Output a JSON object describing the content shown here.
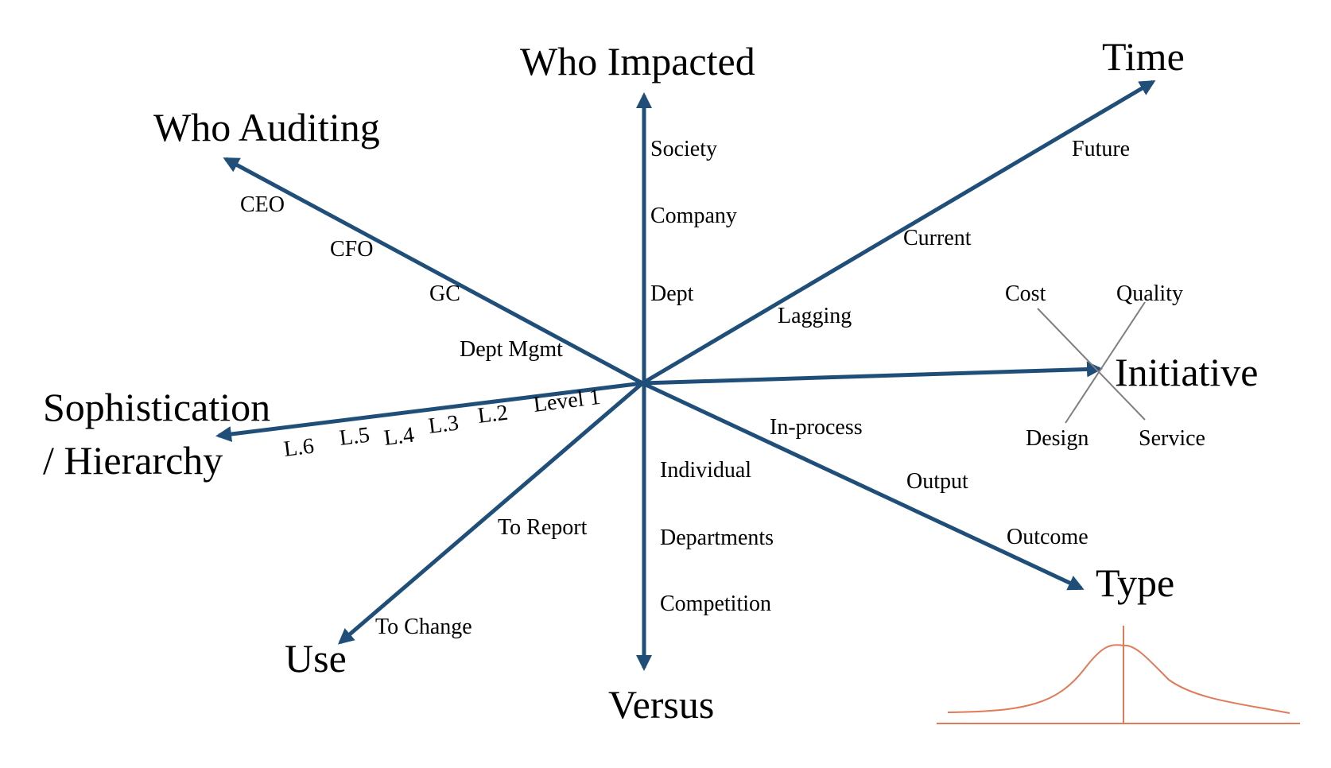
{
  "colors": {
    "axis": "#1f4e79",
    "cross": "#7f7f7f",
    "curve": "#e07b5a",
    "text": "#000000"
  },
  "axes": [
    {
      "title": "Who Impacted",
      "positive_labels": [
        "Society",
        "Company",
        "Dept"
      ],
      "opposite_title": "Versus",
      "opposite_labels": [
        "Individual",
        "Departments",
        "Competition"
      ]
    },
    {
      "title": "Time",
      "labels": [
        "Future",
        "Current",
        "Lagging"
      ]
    },
    {
      "title": "Who Auditing",
      "labels": [
        "CEO",
        "CFO",
        "GC",
        "Dept Mgmt"
      ]
    },
    {
      "title_lines": [
        "Sophistication",
        "/ Hierarchy"
      ],
      "labels": [
        "Level 1",
        "L.2",
        "L.3",
        "L.4",
        "L.5",
        "L.6"
      ]
    },
    {
      "title": "Use",
      "labels": [
        "To Report",
        "To Change"
      ]
    },
    {
      "title": "Type",
      "labels": [
        "In-process",
        "Output",
        "Outcome"
      ]
    },
    {
      "title": "Initiative",
      "cross_labels": [
        "Cost",
        "Quality",
        "Design",
        "Service"
      ]
    }
  ]
}
